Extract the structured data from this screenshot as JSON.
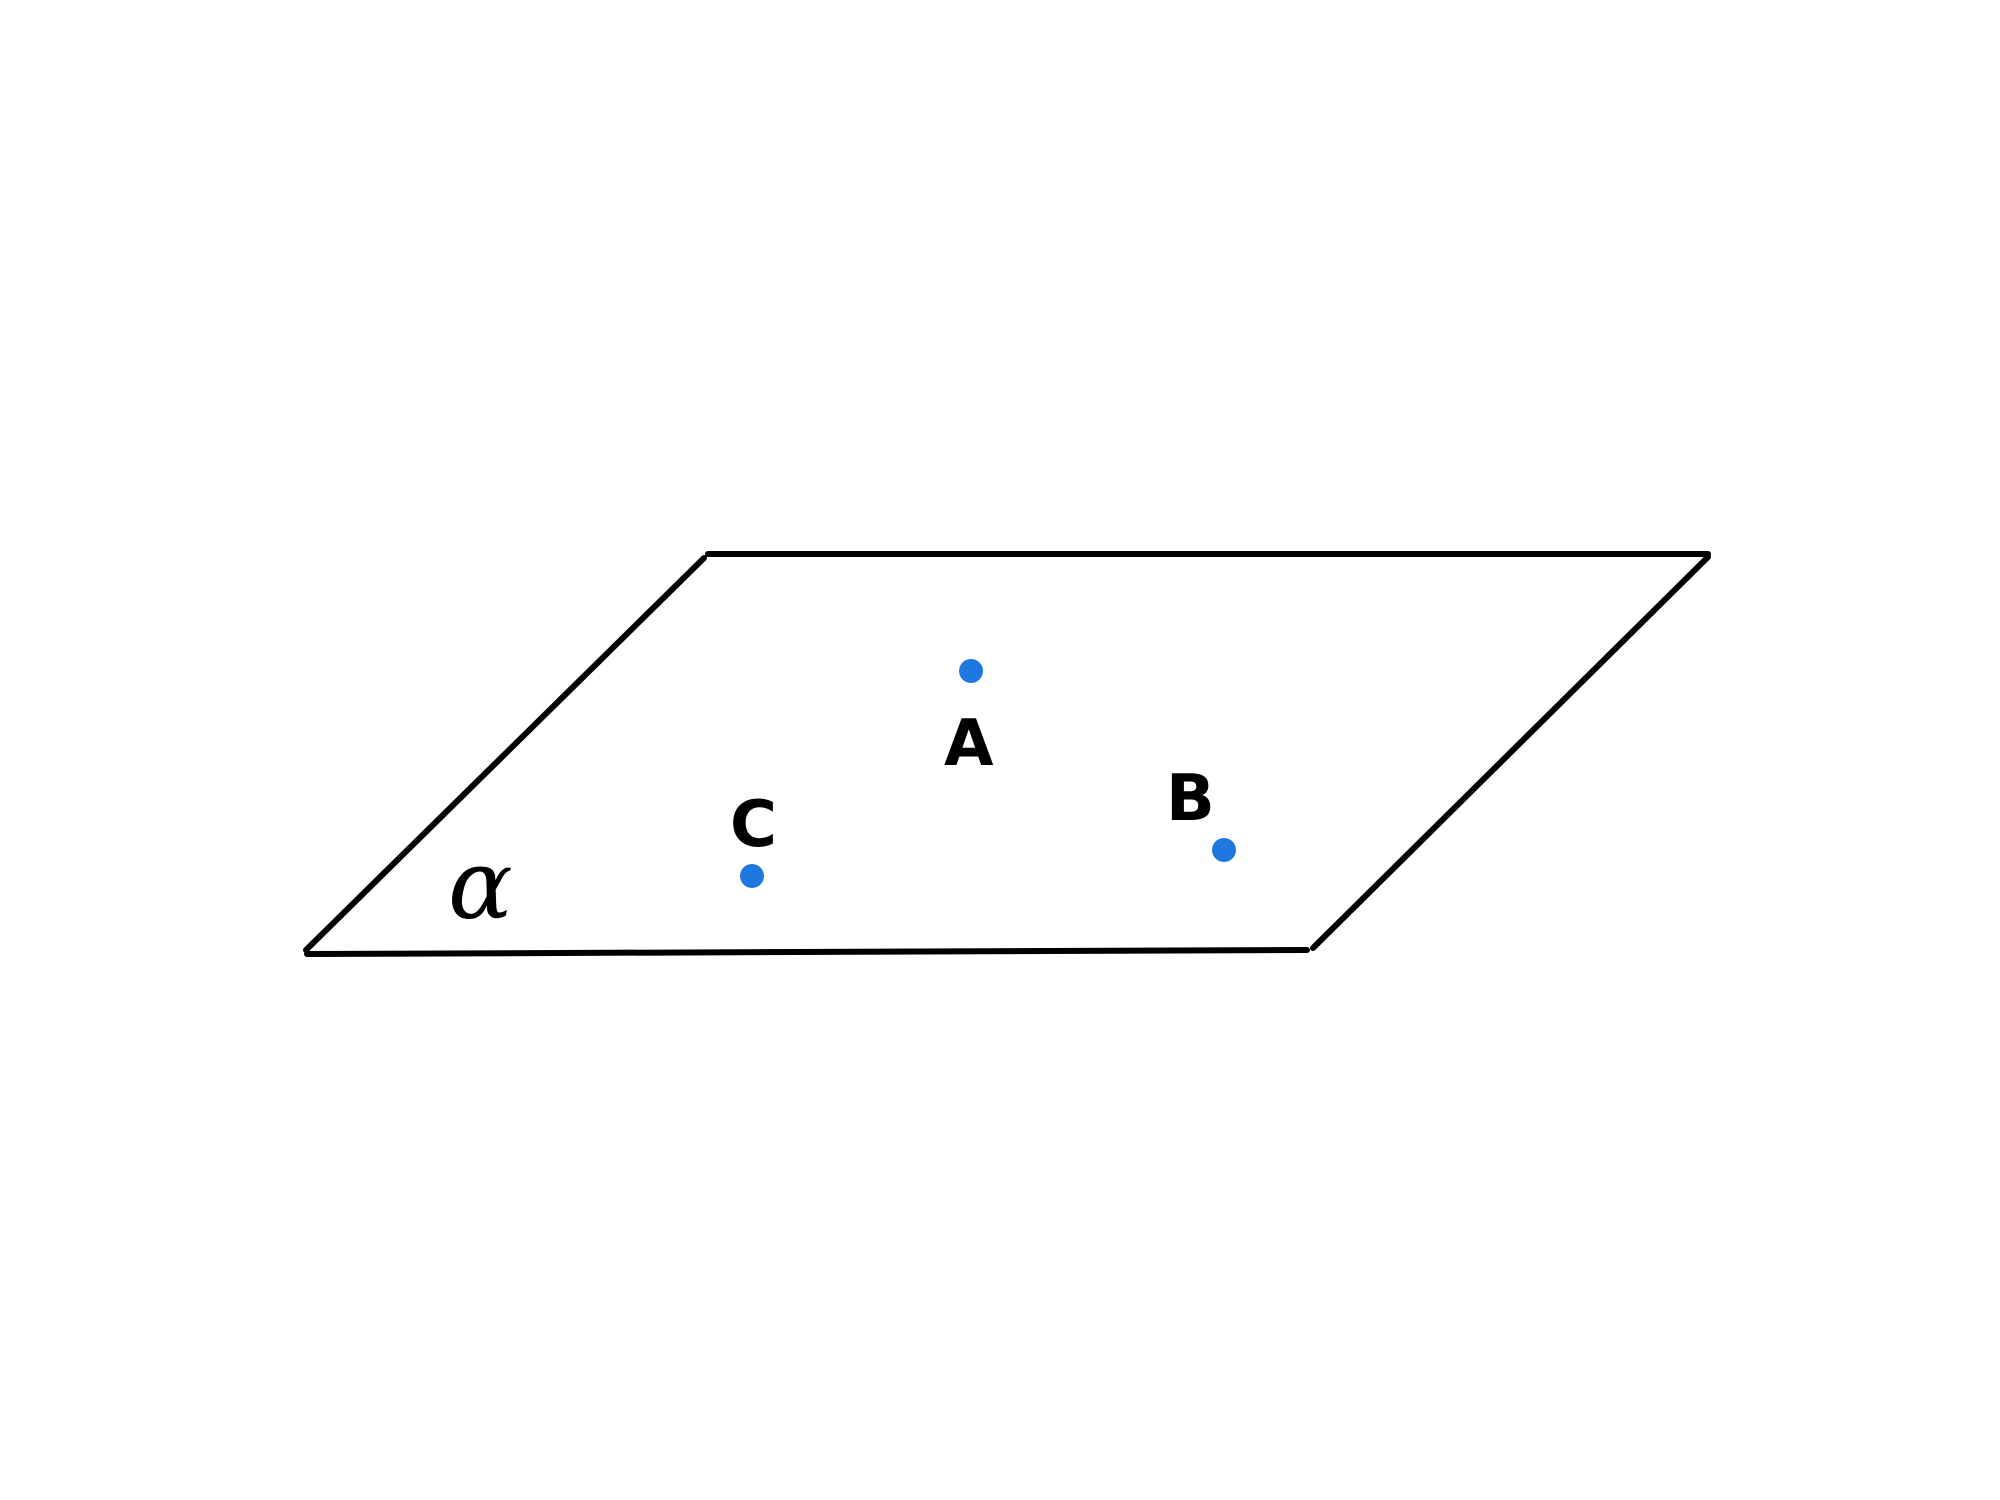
{
  "diagram": {
    "plane": {
      "label": "α",
      "edge_color": "#000000"
    },
    "points": [
      {
        "id": "A",
        "label": "A",
        "color": "#1f77e0"
      },
      {
        "id": "B",
        "label": "B",
        "color": "#1f77e0"
      },
      {
        "id": "C",
        "label": "C",
        "color": "#1f77e0"
      }
    ]
  }
}
